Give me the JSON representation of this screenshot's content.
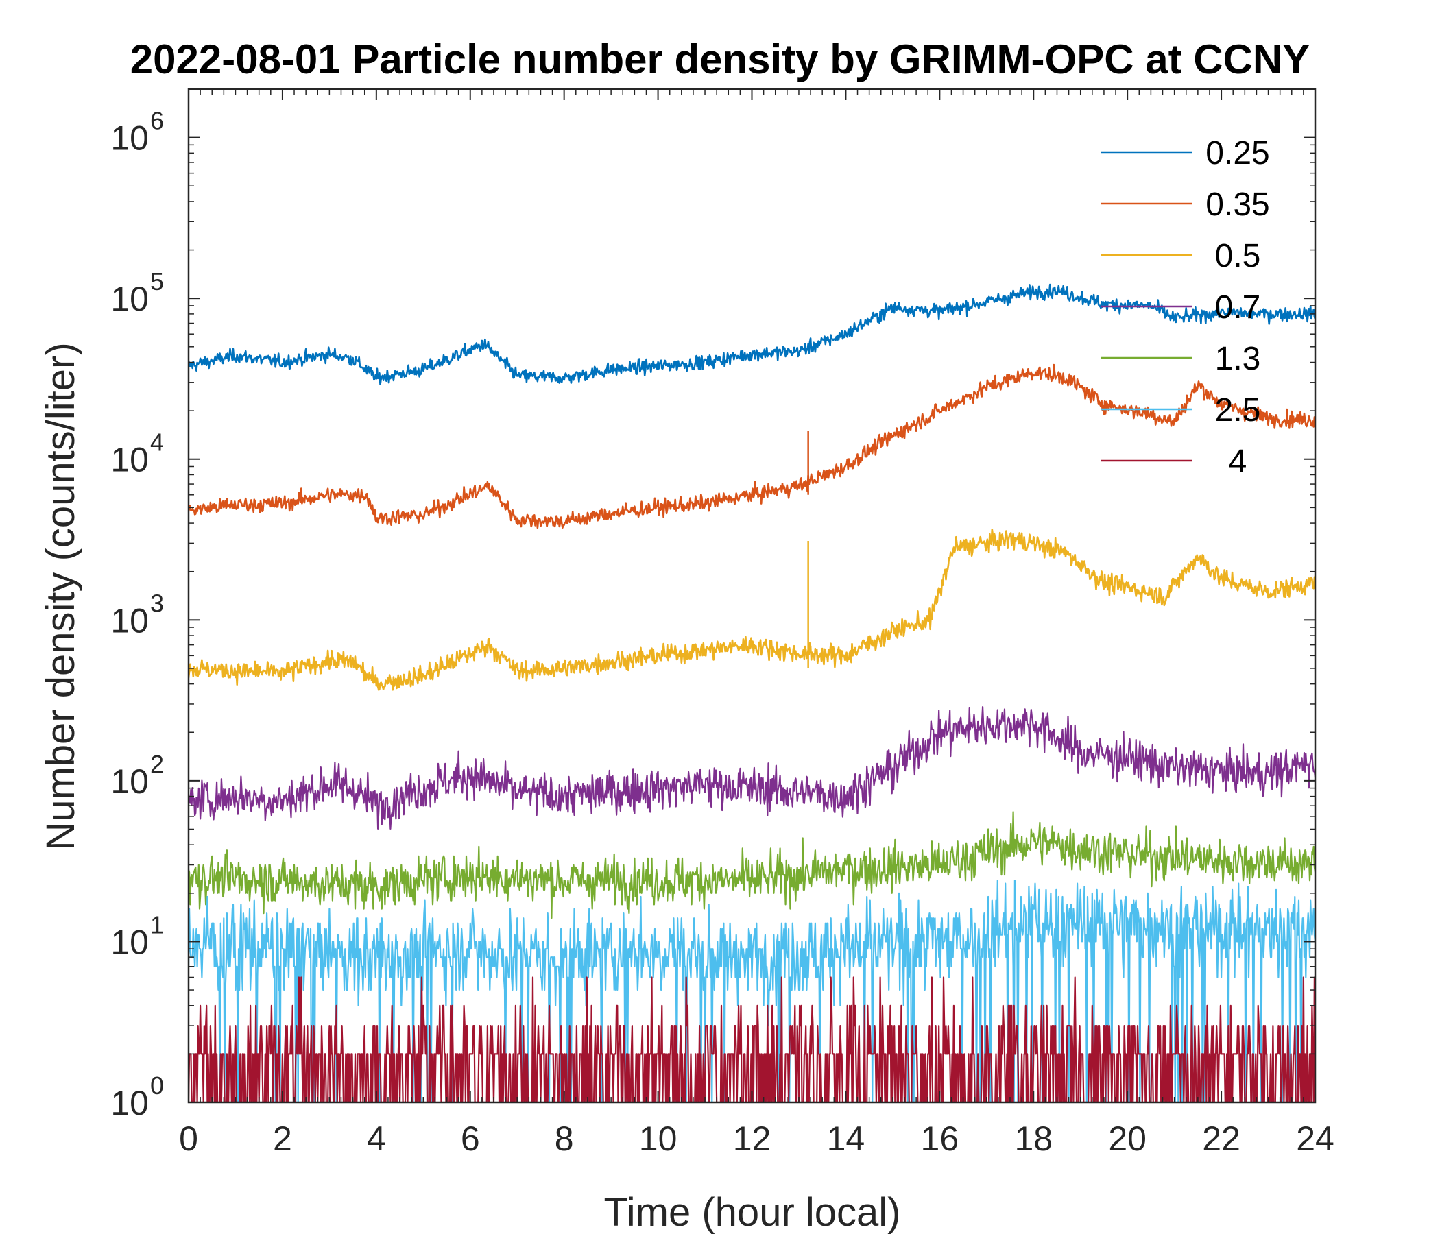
{
  "chart_data": {
    "type": "line",
    "title": "2022-08-01 Particle number density by GRIMM-OPC at CCNY",
    "xlabel": "Time (hour local)",
    "ylabel": "Number density (counts/liter)",
    "yscale": "log",
    "xlim": [
      0,
      24
    ],
    "ylim": [
      1,
      2000000
    ],
    "x_ticks": [
      0,
      2,
      4,
      6,
      8,
      10,
      12,
      14,
      16,
      18,
      20,
      22,
      24
    ],
    "y_ticks": [
      {
        "value": 1,
        "base": "10",
        "exp": "0"
      },
      {
        "value": 10,
        "base": "10",
        "exp": "1"
      },
      {
        "value": 100,
        "base": "10",
        "exp": "2"
      },
      {
        "value": 1000,
        "base": "10",
        "exp": "3"
      },
      {
        "value": 10000,
        "base": "10",
        "exp": "4"
      },
      {
        "value": 100000,
        "base": "10",
        "exp": "5"
      },
      {
        "value": 1000000,
        "base": "10",
        "exp": "6"
      }
    ],
    "legend_position": "top-right",
    "series": [
      {
        "name": "0.25",
        "color": "#0072BD",
        "x": [
          0,
          1,
          2,
          3,
          3.5,
          4,
          5,
          6.3,
          7,
          8,
          9,
          10,
          11,
          12,
          13,
          14,
          15,
          16,
          17,
          18,
          18.5,
          19.5,
          20.5,
          21,
          22,
          23,
          24
        ],
        "y": [
          38000,
          44000,
          40000,
          45000,
          42000,
          32000,
          36000,
          52000,
          33000,
          32000,
          36000,
          38000,
          40000,
          45000,
          47000,
          60000,
          88000,
          83000,
          95000,
          110000,
          112000,
          92000,
          90000,
          75000,
          82000,
          80000,
          80000
        ]
      },
      {
        "name": "0.35",
        "color": "#D95319",
        "x": [
          0,
          1,
          2,
          3,
          3.8,
          4,
          5,
          6.4,
          7,
          8,
          9,
          10,
          11,
          12,
          13,
          14,
          15,
          16,
          17,
          18,
          18.7,
          19.5,
          20.5,
          21,
          21.5,
          22,
          23,
          24
        ],
        "y": [
          4800,
          5200,
          5300,
          6000,
          6000,
          4300,
          4500,
          6800,
          4200,
          4100,
          4600,
          5000,
          5300,
          6000,
          6800,
          9000,
          14000,
          20000,
          28000,
          35000,
          32000,
          22000,
          19000,
          17000,
          29000,
          22000,
          18000,
          17500
        ]
      },
      {
        "name": "0.5",
        "color": "#EDB120",
        "x": [
          0,
          1,
          2,
          3,
          3.5,
          4,
          5,
          6.4,
          7,
          8,
          9,
          10,
          11,
          12,
          13,
          14,
          15,
          15.8,
          16.3,
          17,
          17.5,
          18,
          18.7,
          19.5,
          20,
          20.8,
          21.5,
          22,
          23,
          24
        ],
        "y": [
          500,
          480,
          470,
          560,
          550,
          400,
          450,
          700,
          480,
          500,
          550,
          600,
          650,
          700,
          620,
          600,
          850,
          1000,
          2800,
          3000,
          3200,
          3000,
          2600,
          1700,
          1600,
          1400,
          2500,
          1800,
          1500,
          1700
        ]
      },
      {
        "name": "0.7",
        "color": "#7E2F8E",
        "x": [
          0,
          1,
          2,
          3,
          3.5,
          4,
          5,
          6,
          7,
          8,
          9,
          10,
          11,
          12,
          13,
          14,
          15,
          16,
          17,
          18,
          19,
          20,
          21,
          22,
          23,
          24
        ],
        "y": [
          75,
          80,
          75,
          95,
          90,
          70,
          90,
          110,
          85,
          80,
          85,
          90,
          95,
          90,
          85,
          80,
          120,
          200,
          220,
          230,
          150,
          140,
          120,
          115,
          110,
          130
        ]
      },
      {
        "name": "1.3",
        "color": "#77AC30",
        "x": [
          0,
          2,
          4,
          6,
          8,
          10,
          12,
          14,
          16,
          17,
          18,
          19,
          20,
          22,
          24
        ],
        "y": [
          25,
          24,
          22,
          26,
          24,
          24,
          24,
          28,
          30,
          36,
          42,
          38,
          35,
          32,
          30
        ]
      },
      {
        "name": "2.5",
        "color": "#4DBEEE",
        "x": [
          0,
          2,
          4,
          6,
          8,
          10,
          12,
          14,
          16,
          18,
          20,
          22,
          24
        ],
        "y": [
          10,
          9,
          8,
          9,
          8,
          9,
          8,
          9,
          10,
          13,
          13,
          12,
          12
        ]
      },
      {
        "name": "4",
        "color": "#A2142F",
        "x": [
          0,
          24
        ],
        "y": [
          1.5,
          1.5
        ]
      }
    ]
  }
}
